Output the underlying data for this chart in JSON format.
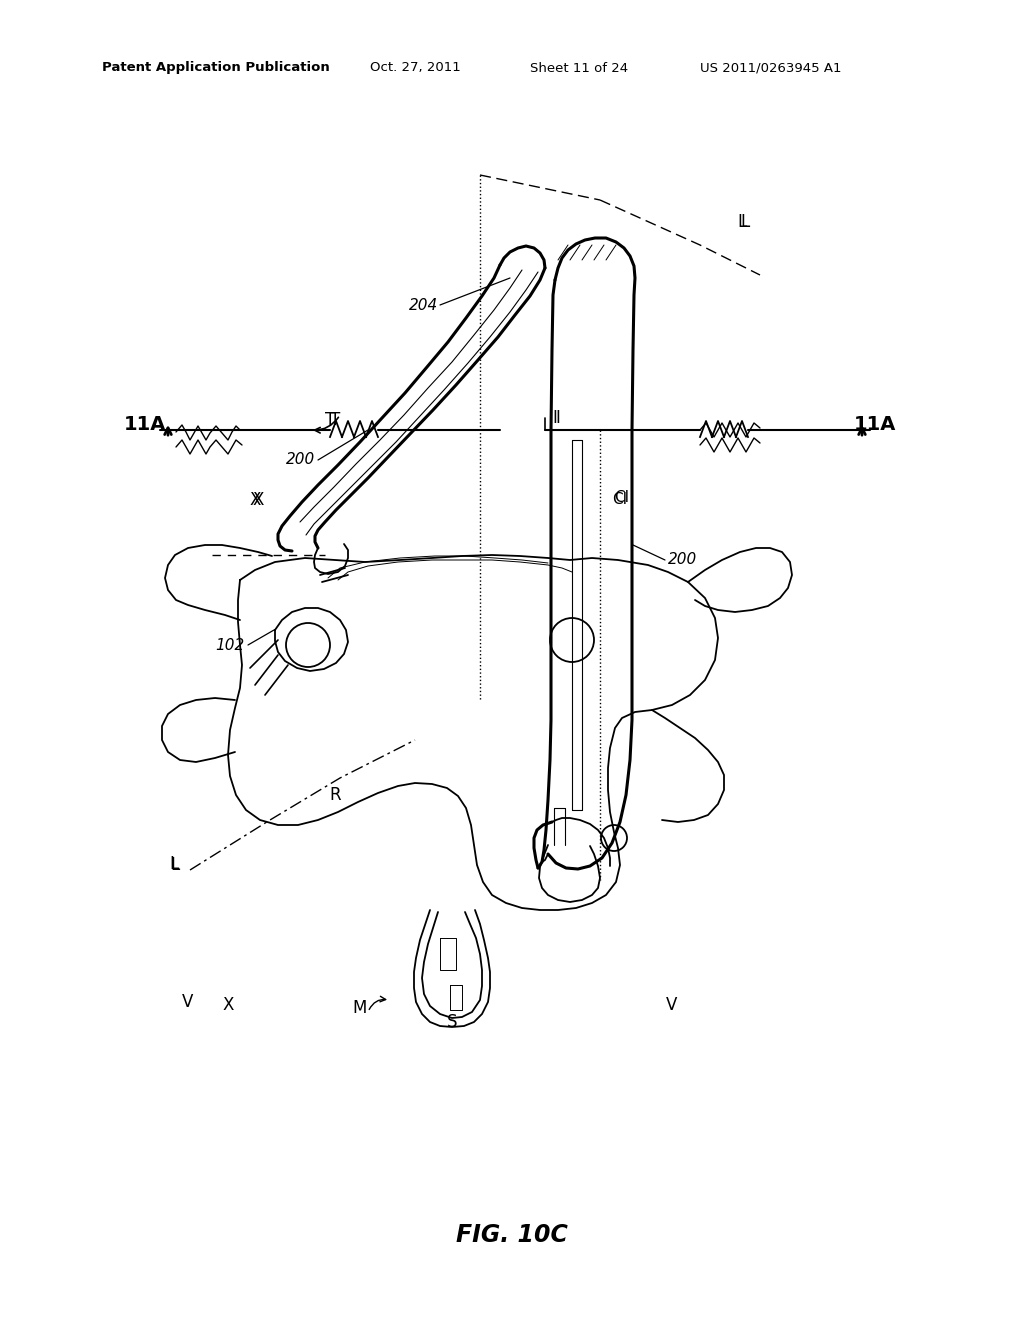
{
  "bg_color": "#ffffff",
  "line_color": "#000000",
  "header_left": "Patent Application Publication",
  "header_mid1": "Oct. 27, 2011",
  "header_mid2": "Sheet 11 of 24",
  "header_right": "US 2011/0263945 A1",
  "figure_label": "FIG. 10C",
  "page_width": 10.24,
  "page_height": 13.2,
  "dpi": 100,
  "lw_main": 1.3,
  "lw_thick": 2.2,
  "lw_thin": 0.7
}
